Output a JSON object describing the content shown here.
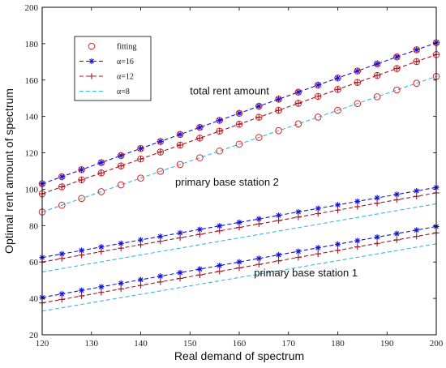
{
  "chart_data": {
    "type": "line",
    "xlabel": "Real demand of spectrum",
    "ylabel": "Optimal rent amount of spectrum",
    "xlim": [
      120,
      200
    ],
    "ylim": [
      20,
      200
    ],
    "xticks": [
      120,
      130,
      140,
      150,
      160,
      170,
      180,
      190,
      200
    ],
    "yticks": [
      20,
      40,
      60,
      80,
      100,
      120,
      140,
      160,
      180,
      200
    ],
    "grid": false,
    "legend_position": "top-left",
    "legend": [
      {
        "label": "fitting",
        "style": "circle",
        "color": "#e8211f"
      },
      {
        "label": "α=16",
        "style": "star-dashed",
        "color": "#1414d6"
      },
      {
        "label": "α=12",
        "style": "plus-dashed",
        "color": "#9b1b2a"
      },
      {
        "label": "α=8",
        "style": "dashed",
        "color": "#39b6e0"
      }
    ],
    "annotations": [
      {
        "text": "total rent amount",
        "x": 150,
        "y": 152
      },
      {
        "text": "primary base station 2",
        "x": 147,
        "y": 102
      },
      {
        "text": "primary base station 1",
        "x": 163,
        "y": 52
      }
    ],
    "x": [
      120,
      124,
      128,
      132,
      136,
      140,
      144,
      148,
      152,
      156,
      160,
      164,
      168,
      172,
      176,
      180,
      184,
      188,
      192,
      196,
      200
    ],
    "series": [
      {
        "group": "total",
        "alpha": 16,
        "color": "#1414d6",
        "marker": "star",
        "fit": true,
        "start": 103,
        "end": 180.5
      },
      {
        "group": "total",
        "alpha": 12,
        "color": "#9b1b2a",
        "marker": "plus",
        "fit": true,
        "start": 97.5,
        "end": 174
      },
      {
        "group": "total",
        "alpha": 8,
        "color": "#39b6e0",
        "marker": "none",
        "fit": true,
        "start": 87.5,
        "end": 162
      },
      {
        "group": "station2",
        "alpha": 16,
        "color": "#1414d6",
        "marker": "star",
        "fit": false,
        "start": 62.5,
        "end": 101
      },
      {
        "group": "station2",
        "alpha": 12,
        "color": "#9b1b2a",
        "marker": "plus",
        "fit": false,
        "start": 60,
        "end": 98
      },
      {
        "group": "station2",
        "alpha": 8,
        "color": "#39b6e0",
        "marker": "none",
        "fit": false,
        "start": 54.5,
        "end": 92
      },
      {
        "group": "station1",
        "alpha": 16,
        "color": "#1414d6",
        "marker": "star",
        "fit": false,
        "start": 40.5,
        "end": 79.5
      },
      {
        "group": "station1",
        "alpha": 12,
        "color": "#9b1b2a",
        "marker": "plus",
        "fit": false,
        "start": 37.5,
        "end": 76
      },
      {
        "group": "station1",
        "alpha": 8,
        "color": "#39b6e0",
        "marker": "none",
        "fit": false,
        "start": 33,
        "end": 70
      }
    ],
    "fit_color": "#e8211f"
  }
}
